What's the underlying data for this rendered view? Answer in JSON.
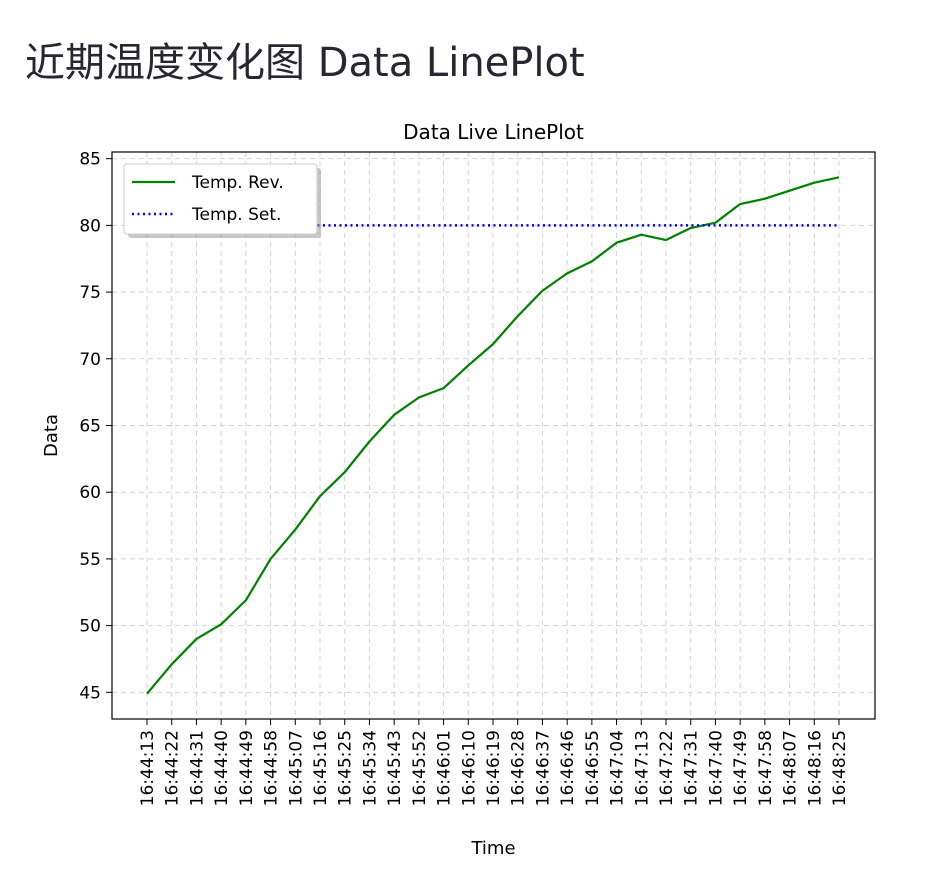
{
  "page": {
    "heading": "近期温度变化图 Data LinePlot"
  },
  "chart_data": {
    "type": "line",
    "title": "Data Live LinePlot",
    "xlabel": "Time",
    "ylabel": "Data",
    "ylim": [
      43,
      85.5
    ],
    "y_ticks": [
      45,
      50,
      55,
      60,
      65,
      70,
      75,
      80,
      85
    ],
    "grid": true,
    "legend_position": "upper-left",
    "categories": [
      "16:44:13",
      "16:44:22",
      "16:44:31",
      "16:44:40",
      "16:44:49",
      "16:44:58",
      "16:45:07",
      "16:45:16",
      "16:45:25",
      "16:45:34",
      "16:45:43",
      "16:45:52",
      "16:46:01",
      "16:46:10",
      "16:46:19",
      "16:46:28",
      "16:46:37",
      "16:46:46",
      "16:46:55",
      "16:47:04",
      "16:47:13",
      "16:47:22",
      "16:47:31",
      "16:47:40",
      "16:47:49",
      "16:47:58",
      "16:48:07",
      "16:48:16",
      "16:48:25"
    ],
    "series": [
      {
        "name": "Temp. Rev.",
        "style": "solid",
        "color": "#008000",
        "values": [
          44.9,
          47.1,
          49.0,
          50.1,
          51.9,
          55.0,
          57.2,
          59.7,
          61.5,
          63.8,
          65.8,
          67.1,
          67.8,
          69.5,
          71.1,
          73.2,
          75.1,
          76.4,
          77.3,
          78.7,
          79.3,
          78.9,
          79.8,
          80.2,
          81.6,
          82.0,
          82.6,
          83.2,
          83.6
        ]
      },
      {
        "name": "Temp. Set.",
        "style": "dotted",
        "color": "#0000ff",
        "values": [
          80,
          80,
          80,
          80,
          80,
          80,
          80,
          80,
          80,
          80,
          80,
          80,
          80,
          80,
          80,
          80,
          80,
          80,
          80,
          80,
          80,
          80,
          80,
          80,
          80,
          80,
          80,
          80,
          80
        ]
      }
    ]
  }
}
